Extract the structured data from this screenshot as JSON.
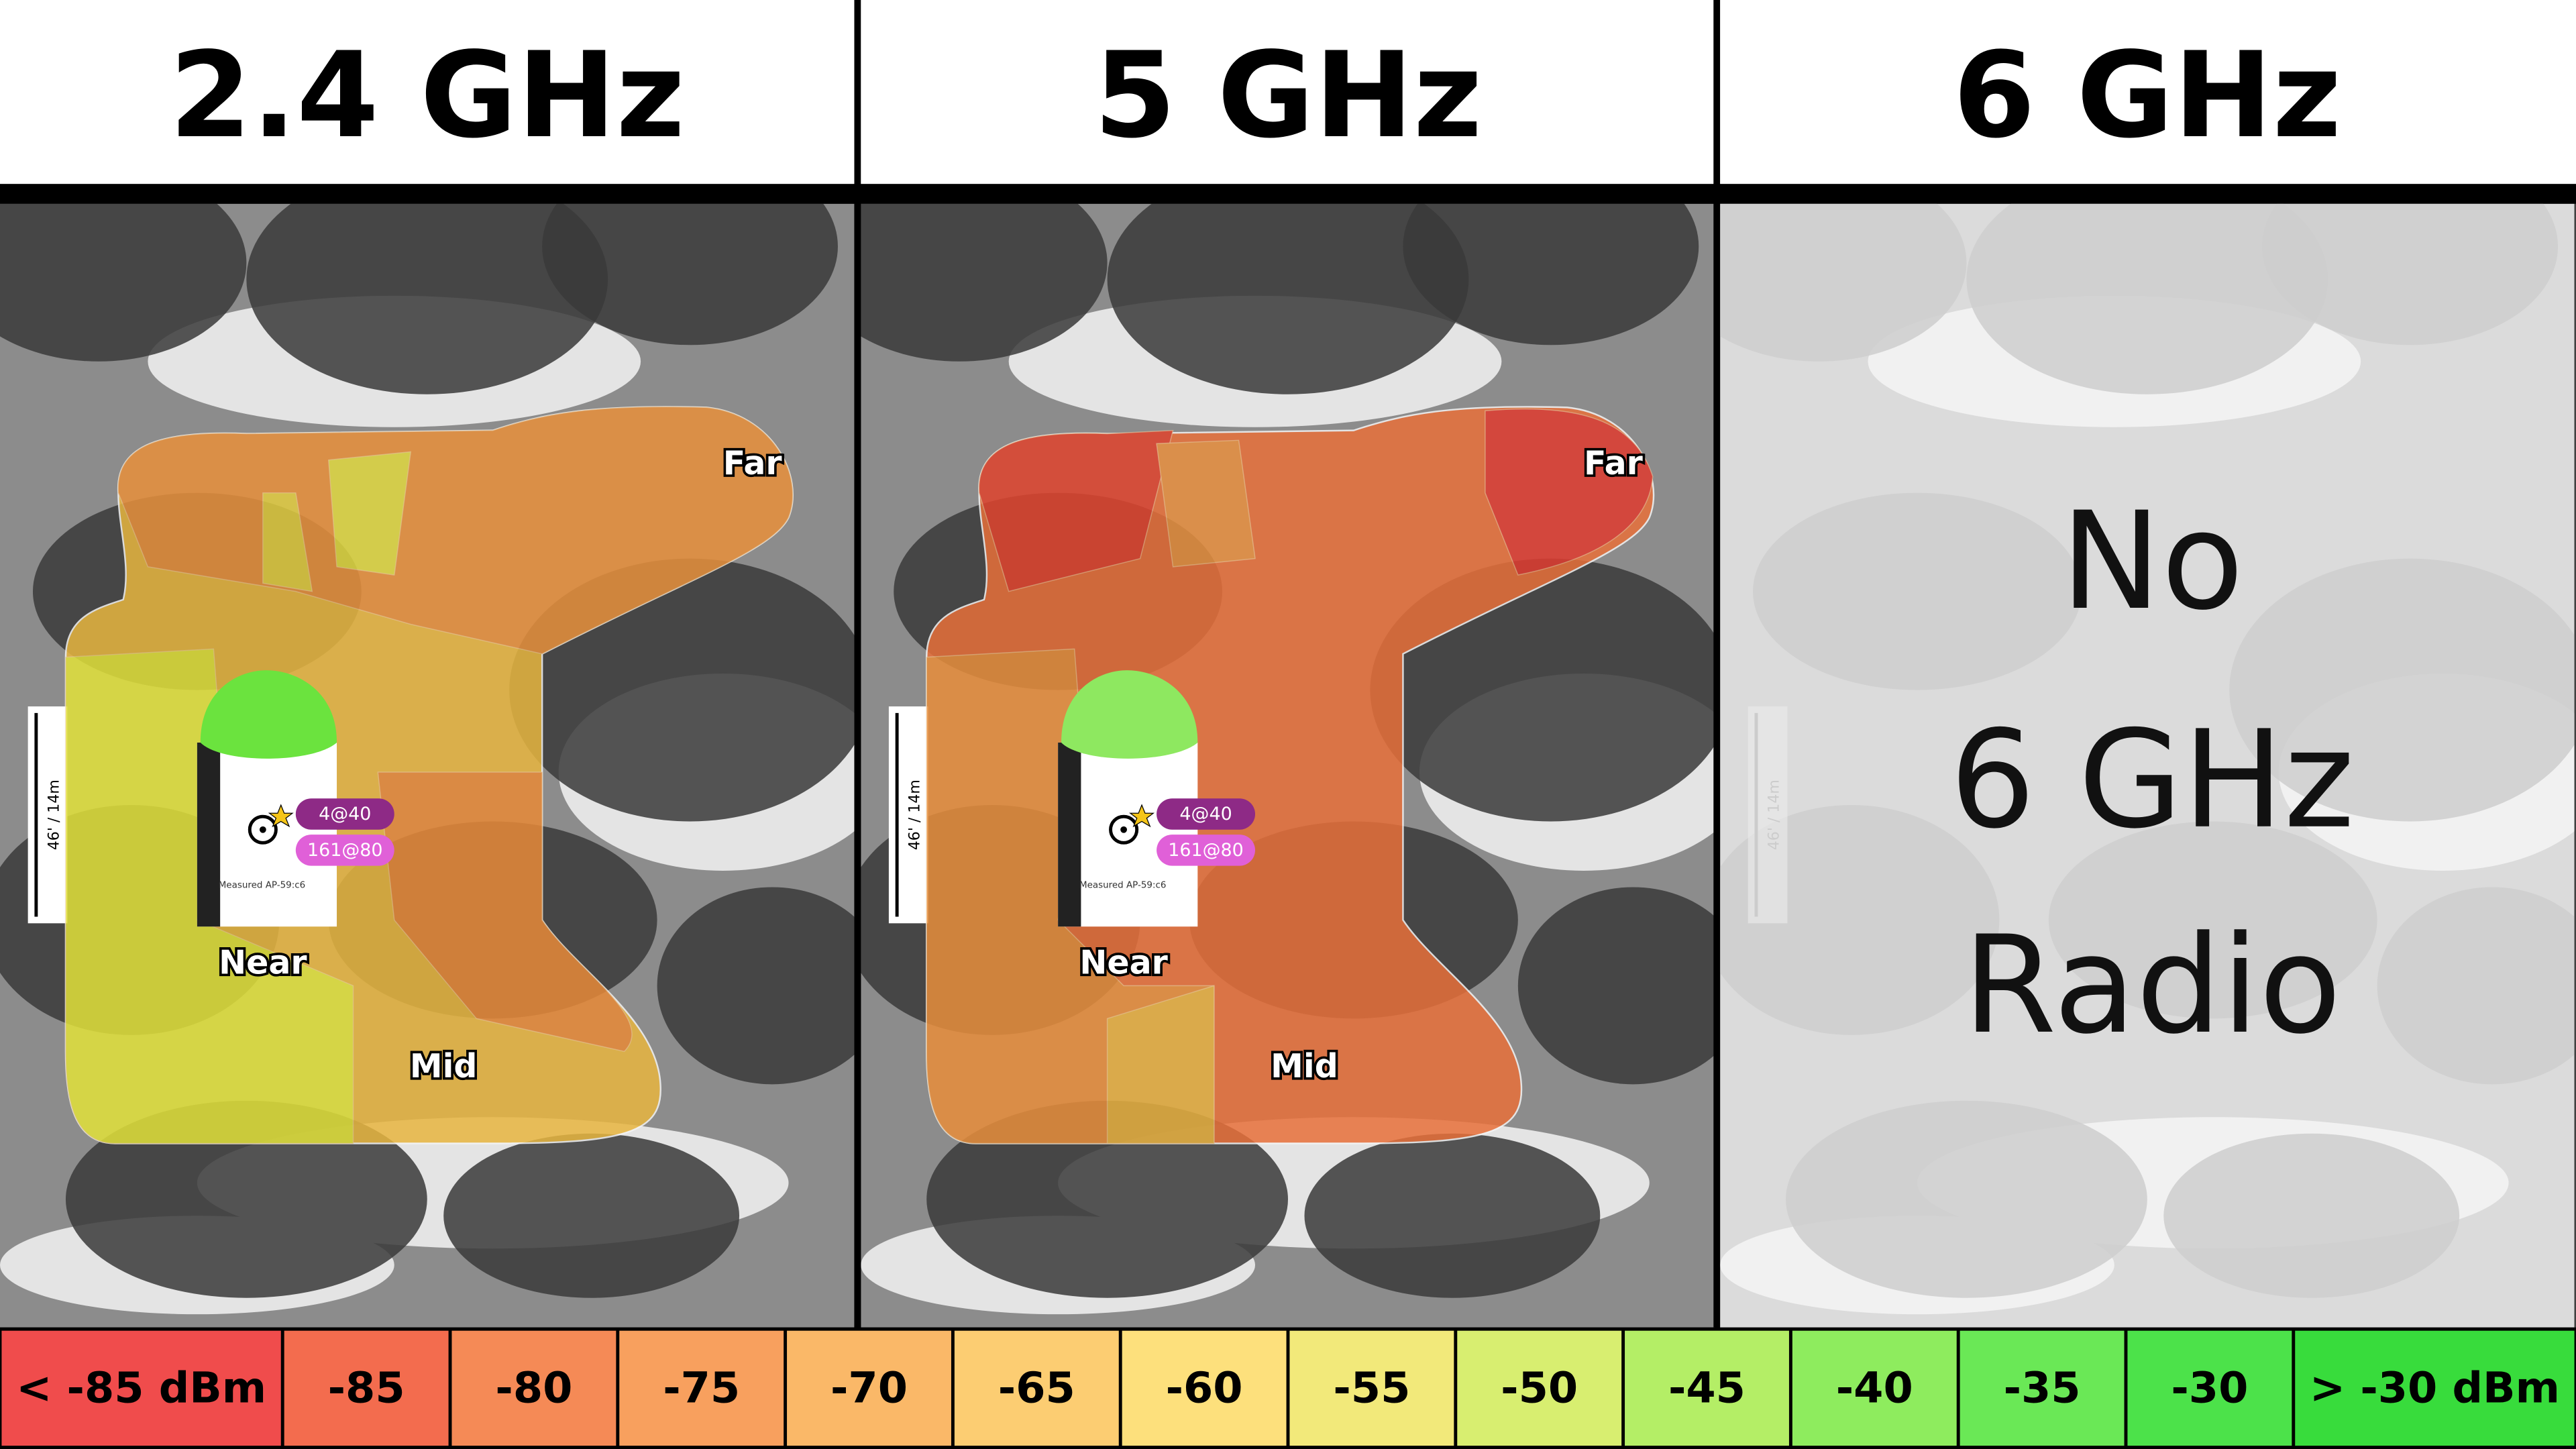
{
  "panels": [
    {
      "title": "2.4 GHz",
      "far": "Far",
      "near": "Near",
      "mid": "Mid",
      "channels": [
        "4@40",
        "161@80"
      ],
      "ap_label": "Measured AP-59:c6",
      "scale": "46' / 14m"
    },
    {
      "title": "5 GHz",
      "far": "Far",
      "near": "Near",
      "mid": "Mid",
      "channels": [
        "4@40",
        "161@80"
      ],
      "ap_label": "Measured AP-59:c6",
      "scale": "46' / 14m"
    },
    {
      "title": "6 GHz",
      "scale": "46' / 14m",
      "message": [
        "No",
        "6 GHz",
        "Radio"
      ]
    }
  ],
  "legend": [
    {
      "label": "< -85 dBm",
      "color": "#f04c4c"
    },
    {
      "label": "-85",
      "color": "#f36c4e"
    },
    {
      "label": "-80",
      "color": "#f58a56"
    },
    {
      "label": "-75",
      "color": "#f8a05e"
    },
    {
      "label": "-70",
      "color": "#fab868"
    },
    {
      "label": "-65",
      "color": "#fccd72"
    },
    {
      "label": "-60",
      "color": "#fde07c"
    },
    {
      "label": "-55",
      "color": "#f2e97a"
    },
    {
      "label": "-50",
      "color": "#d8ee70"
    },
    {
      "label": "-45",
      "color": "#b4ee66"
    },
    {
      "label": "-40",
      "color": "#8eec5e"
    },
    {
      "label": "-35",
      "color": "#6ae856"
    },
    {
      "label": "-30",
      "color": "#4ce24a"
    },
    {
      "label": "> -30 dBm",
      "color": "#38dc3c"
    }
  ]
}
